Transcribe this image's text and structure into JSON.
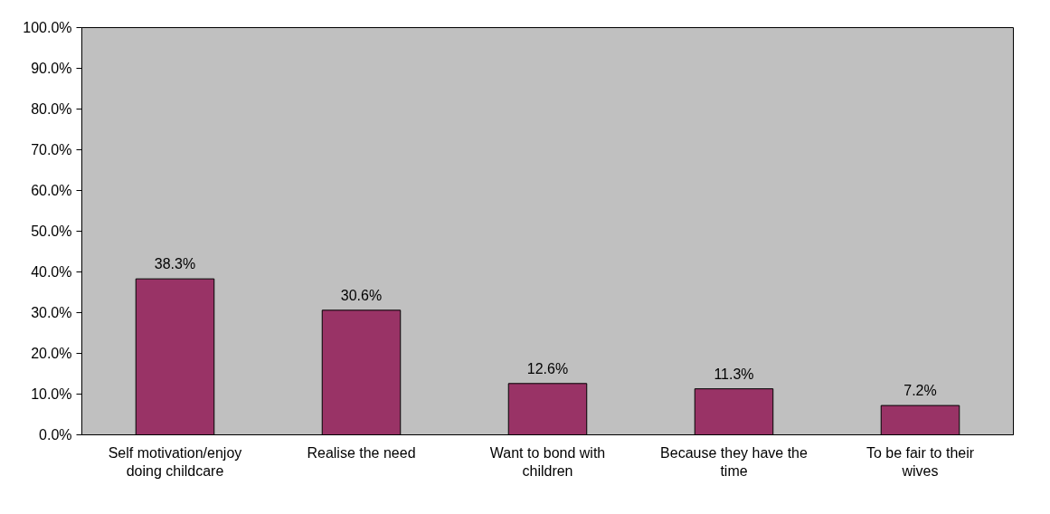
{
  "chart_data": {
    "type": "bar",
    "categories": [
      "Self motivation/enjoy doing childcare",
      "Realise the need",
      "Want to bond with children",
      "Because they have the time",
      "To be fair to their wives"
    ],
    "values": [
      38.3,
      30.6,
      12.6,
      11.3,
      7.2
    ],
    "value_labels": [
      "38.3%",
      "30.6%",
      "12.6%",
      "11.3%",
      "7.2%"
    ],
    "color": "#993366",
    "ylim": [
      0,
      100
    ],
    "yticks": [
      {
        "value": 0,
        "label": "0.0%"
      },
      {
        "value": 10,
        "label": "10.0%"
      },
      {
        "value": 20,
        "label": "20.0%"
      },
      {
        "value": 30,
        "label": "30.0%"
      },
      {
        "value": 40,
        "label": "40.0%"
      },
      {
        "value": 50,
        "label": "50.0%"
      },
      {
        "value": 60,
        "label": "60.0%"
      },
      {
        "value": 70,
        "label": "70.0%"
      },
      {
        "value": 80,
        "label": "80.0%"
      },
      {
        "value": 90,
        "label": "90.0%"
      },
      {
        "value": 100,
        "label": "100.0%"
      }
    ],
    "grid": false
  }
}
